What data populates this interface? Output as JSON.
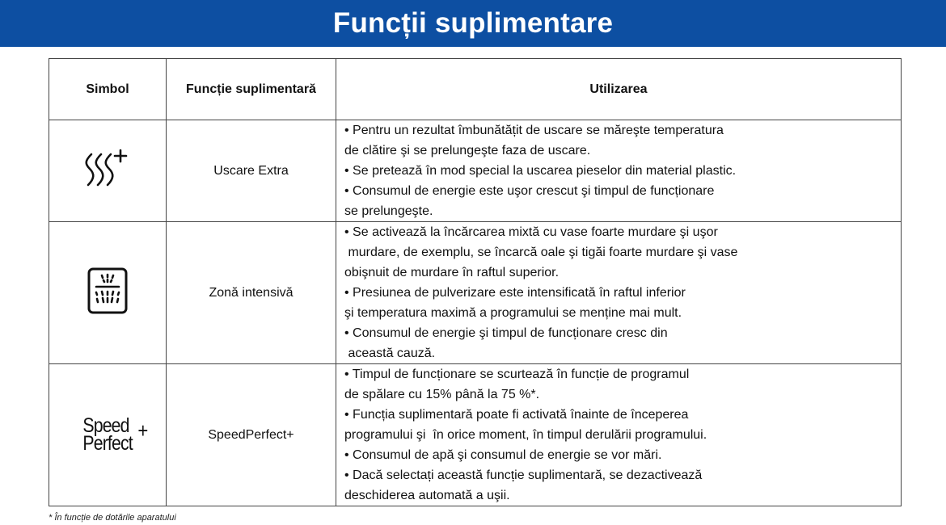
{
  "title": "Funcții suplimentare",
  "table": {
    "headers": [
      "Simbol",
      "Funcție suplimentară",
      "Utilizarea"
    ],
    "rows": [
      {
        "icon": "drying-waves-plus-icon",
        "function": "Uscare Extra",
        "usage": [
          "• Pentru un rezultat îmbunătățit de uscare se măreşte temperatura",
          "de clătire şi se prelungeşte faza de uscare.",
          "• Se pretează în mod special la uscarea pieselor din material plastic.",
          "• Consumul de energie este uşor crescut şi timpul de funcționare",
          "se prelungeşte."
        ]
      },
      {
        "icon": "intensive-zone-icon",
        "function": "Zonă intensivă",
        "usage": [
          "• Se activează la încărcarea mixtă cu vase foarte murdare şi uşor",
          " murdare, de exemplu, se încarcă oale şi tigăi foarte murdare şi vase",
          "obişnuit de murdare în raftul superior.",
          "• Presiunea de pulverizare este intensificată în raftul inferior",
          "şi temperatura maximă a programului se menține mai mult.",
          "• Consumul de energie şi timpul de funcționare cresc din",
          " această cauză."
        ]
      },
      {
        "icon": "speedperfect-plus-icon",
        "icon_text": [
          "Speed",
          "Perfect",
          "+"
        ],
        "function": "SpeedPerfect+",
        "usage": [
          "• Timpul de funcționare se scurtează în funcție de programul",
          "de spălare cu 15% până la 75 %*.",
          "• Funcția suplimentară poate fi activată înainte de începerea",
          "programului şi  în orice moment, în timpul derulării programului.",
          "• Consumul de apă şi consumul de energie se vor mări.",
          "• Dacă selectați această funcție suplimentară, se dezactivează",
          "deschiderea automată a uşii."
        ]
      }
    ]
  },
  "footnote": "* În funcție de dotările aparatului",
  "colors": {
    "banner": "#0d4fa2",
    "banner_text": "#ffffff"
  }
}
